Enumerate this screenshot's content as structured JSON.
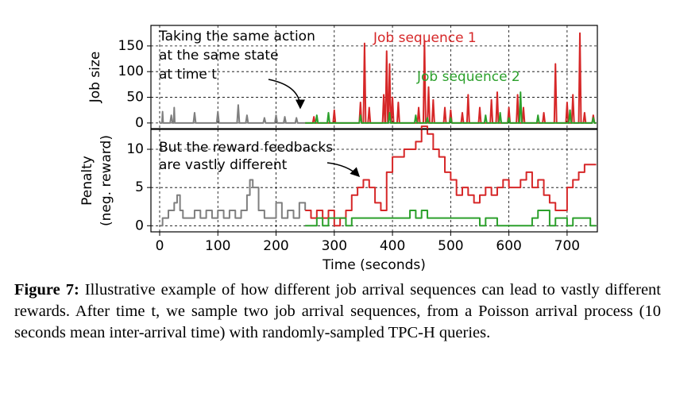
{
  "chart_data": [
    {
      "type": "line",
      "ylabel": "Job size",
      "xlim": [
        -15,
        752
      ],
      "ylim": [
        -11,
        190
      ],
      "yticks": [
        0,
        50,
        100,
        150
      ],
      "grid": true,
      "annotation": [
        "Taking the same action",
        "at the same state",
        "at time t"
      ],
      "series": [
        {
          "color": "#7f7f7f",
          "x": [
            0,
            4,
            5,
            6,
            18,
            20,
            22,
            24,
            25,
            26,
            58,
            60,
            62,
            98,
            100,
            102,
            133,
            135,
            137,
            148,
            150,
            152,
            178,
            180,
            182,
            198,
            200,
            202,
            213,
            215,
            217,
            233,
            235,
            237,
            250
          ],
          "values": [
            0,
            0,
            22,
            0,
            0,
            15,
            0,
            0,
            30,
            0,
            0,
            20,
            0,
            0,
            22,
            0,
            0,
            35,
            0,
            0,
            15,
            0,
            0,
            10,
            0,
            0,
            15,
            0,
            0,
            12,
            0,
            0,
            10,
            0,
            0
          ]
        },
        {
          "name": "Job sequence 1",
          "color": "#d62728",
          "x": [
            250,
            263,
            265,
            267,
            298,
            300,
            302,
            343,
            345,
            347,
            350,
            352,
            354,
            358,
            360,
            362,
            383,
            385,
            387,
            388,
            390,
            392,
            393,
            395,
            397,
            398,
            400,
            402,
            408,
            410,
            412,
            443,
            445,
            447,
            453,
            455,
            457,
            460,
            462,
            464,
            468,
            470,
            472,
            488,
            490,
            492,
            498,
            500,
            502,
            518,
            520,
            522,
            528,
            530,
            532,
            548,
            550,
            552,
            568,
            570,
            572,
            578,
            580,
            582,
            598,
            600,
            602,
            613,
            615,
            617,
            623,
            625,
            627,
            658,
            660,
            662,
            678,
            680,
            682,
            698,
            700,
            702,
            708,
            710,
            712,
            720,
            722,
            724,
            728,
            730,
            732,
            743,
            745,
            747,
            750
          ],
          "values": [
            0,
            0,
            12,
            0,
            0,
            25,
            0,
            0,
            40,
            0,
            0,
            155,
            0,
            0,
            30,
            0,
            0,
            55,
            0,
            0,
            140,
            0,
            0,
            115,
            0,
            0,
            50,
            0,
            0,
            40,
            0,
            0,
            30,
            0,
            0,
            160,
            0,
            0,
            70,
            0,
            0,
            45,
            0,
            0,
            30,
            0,
            0,
            25,
            0,
            0,
            20,
            0,
            0,
            55,
            0,
            0,
            30,
            0,
            0,
            45,
            0,
            0,
            60,
            0,
            0,
            30,
            0,
            0,
            55,
            0,
            0,
            30,
            0,
            0,
            20,
            0,
            0,
            115,
            0,
            0,
            40,
            0,
            0,
            55,
            0,
            0,
            175,
            0,
            0,
            20,
            0,
            0,
            15,
            0,
            0
          ]
        },
        {
          "name": "Job sequence 2",
          "color": "#2ca02c",
          "x": [
            250,
            268,
            270,
            272,
            288,
            290,
            292,
            343,
            345,
            347,
            393,
            395,
            397,
            438,
            440,
            442,
            458,
            460,
            462,
            498,
            500,
            502,
            558,
            560,
            562,
            583,
            585,
            587,
            598,
            600,
            602,
            618,
            620,
            622,
            648,
            650,
            652,
            703,
            705,
            707,
            743,
            745,
            747,
            750
          ],
          "values": [
            0,
            0,
            15,
            0,
            0,
            20,
            0,
            0,
            15,
            0,
            0,
            20,
            0,
            0,
            15,
            0,
            0,
            10,
            0,
            0,
            10,
            0,
            0,
            15,
            0,
            0,
            20,
            0,
            0,
            10,
            0,
            0,
            60,
            0,
            0,
            15,
            0,
            0,
            25,
            0,
            0,
            10,
            0,
            0
          ]
        }
      ]
    },
    {
      "type": "line",
      "drawstyle": "steps-post",
      "ylabel": [
        "Penalty",
        "(neg. reward)"
      ],
      "xlabel": "Time (seconds)",
      "xlim": [
        -15,
        752
      ],
      "xticks": [
        0,
        100,
        200,
        300,
        400,
        500,
        600,
        700
      ],
      "ylim": [
        -0.8,
        12.6
      ],
      "yticks": [
        0,
        5,
        10
      ],
      "grid": true,
      "annotation": [
        "But the reward feedbacks",
        "are vastly different"
      ],
      "series": [
        {
          "color": "#7f7f7f",
          "x": [
            0,
            5,
            10,
            15,
            20,
            25,
            30,
            35,
            40,
            50,
            60,
            70,
            75,
            80,
            90,
            100,
            110,
            120,
            130,
            140,
            150,
            155,
            160,
            170,
            180,
            190,
            200,
            210,
            220,
            230,
            240,
            250
          ],
          "values": [
            0,
            1,
            1,
            2,
            2,
            3,
            4,
            2,
            1,
            1,
            2,
            1,
            1,
            2,
            1,
            2,
            1,
            2,
            1,
            2,
            4,
            6,
            5,
            2,
            1,
            1,
            3,
            1,
            2,
            1,
            3,
            2
          ]
        },
        {
          "color": "#d62728",
          "x": [
            250,
            260,
            270,
            280,
            290,
            300,
            310,
            320,
            330,
            340,
            350,
            360,
            370,
            380,
            390,
            400,
            410,
            420,
            430,
            440,
            450,
            460,
            470,
            480,
            490,
            500,
            510,
            520,
            530,
            540,
            550,
            560,
            570,
            580,
            590,
            600,
            610,
            620,
            630,
            640,
            650,
            660,
            670,
            680,
            690,
            700,
            710,
            720,
            730,
            740,
            750
          ],
          "values": [
            2,
            1,
            2,
            1,
            2,
            0,
            1,
            2,
            4,
            5,
            6,
            5,
            3,
            2,
            7,
            9,
            9,
            10,
            10,
            11,
            13,
            12,
            10,
            9,
            7,
            6,
            4,
            5,
            4,
            3,
            4,
            5,
            4,
            5,
            6,
            5,
            5,
            6,
            7,
            5,
            6,
            4,
            3,
            2,
            2,
            5,
            6,
            7,
            8,
            8,
            8
          ]
        },
        {
          "color": "#2ca02c",
          "x": [
            250,
            270,
            280,
            290,
            320,
            330,
            400,
            420,
            430,
            440,
            450,
            460,
            550,
            560,
            580,
            640,
            650,
            670,
            680,
            700,
            710,
            740,
            750
          ],
          "values": [
            0,
            1,
            0,
            1,
            0,
            1,
            1,
            1,
            2,
            1,
            2,
            1,
            0,
            1,
            0,
            1,
            2,
            0,
            1,
            0,
            1,
            0,
            0
          ]
        }
      ]
    }
  ],
  "caption": {
    "label": "Figure 7:",
    "text": "Illustrative example of how different job arrival sequences can lead to vastly different rewards. After time t, we sample two job arrival sequences, from a Poisson arrival process (10 seconds mean inter-arrival time) with randomly-sampled TPC-H queries."
  }
}
